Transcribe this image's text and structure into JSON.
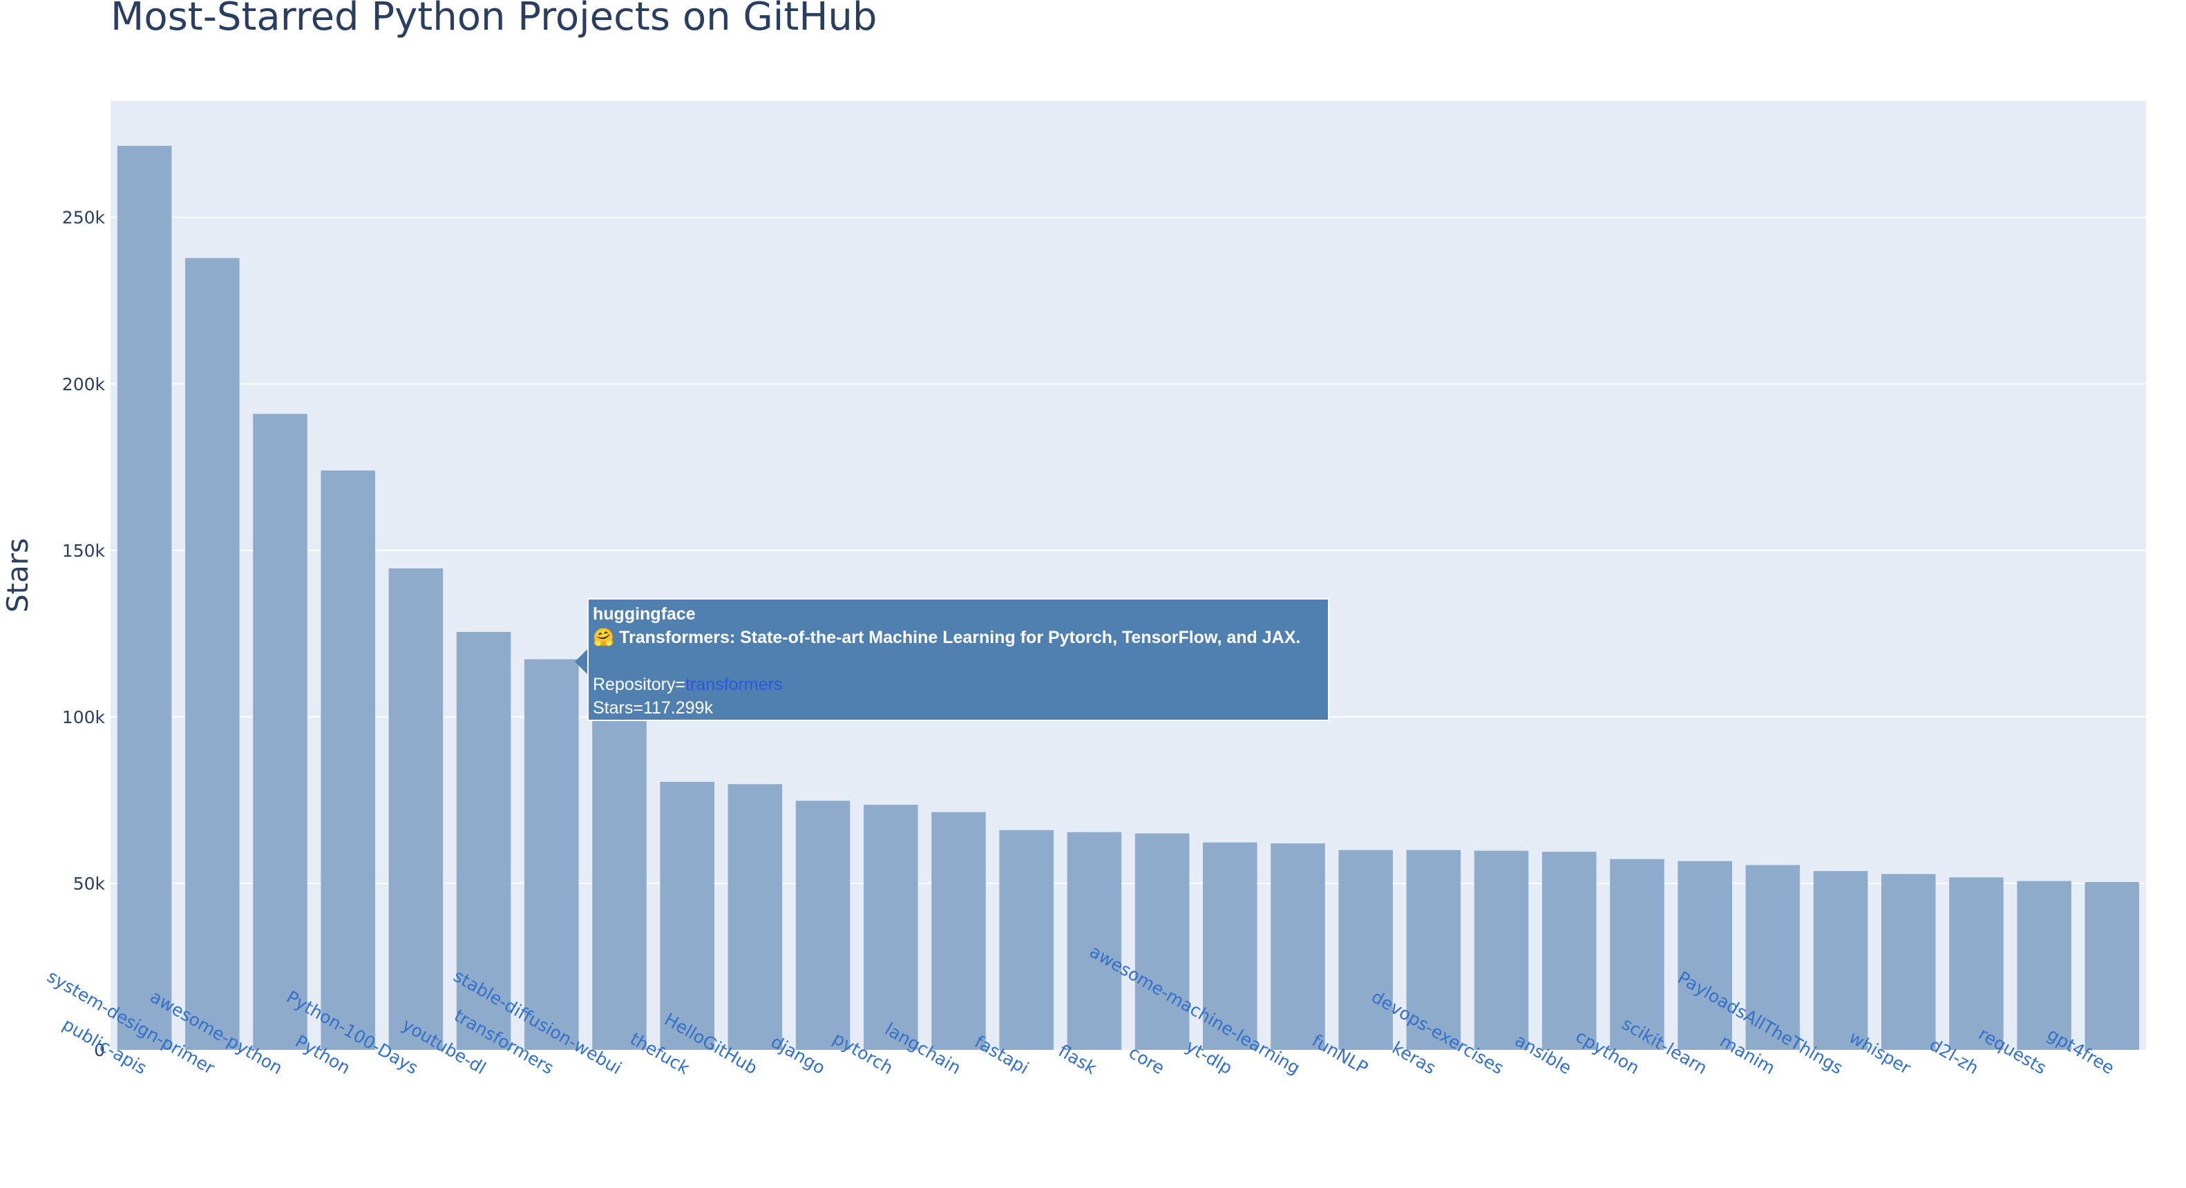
{
  "chart_data": {
    "type": "bar",
    "title": "Most-Starred Python Projects on GitHub",
    "xlabel": "",
    "ylabel": "Stars",
    "ylim": [
      0,
      285000
    ],
    "yticks": [
      0,
      50000,
      100000,
      150000,
      200000,
      250000
    ],
    "ytick_labels": [
      "0",
      "50k",
      "100k",
      "150k",
      "200k",
      "250k"
    ],
    "grid": true,
    "bar_color": "#8eabcc",
    "plot_bg_color": "#e5ecf6",
    "tick_label_color": "#3570c8",
    "categories": [
      "public-apis",
      "system-design-primer",
      "awesome-python",
      "Python",
      "Python-100-Days",
      "youtube-dl",
      "transformers",
      "stable-diffusion-webui",
      "thefuck",
      "HelloGitHub",
      "django",
      "pytorch",
      "langchain",
      "fastapi",
      "flask",
      "core",
      "yt-dlp",
      "awesome-machine-learning",
      "funNLP",
      "keras",
      "devops-exercises",
      "ansible",
      "cpython",
      "scikit-learn",
      "manim",
      "PayloadsAllTheThings",
      "whisper",
      "d2l-zh",
      "requests",
      "gpt4free"
    ],
    "values": [
      271500,
      237800,
      191000,
      174000,
      144600,
      125500,
      117299,
      104000,
      80500,
      79800,
      74800,
      73600,
      71400,
      66000,
      65400,
      65000,
      62300,
      62000,
      60000,
      60000,
      59800,
      59500,
      57300,
      56700,
      55500,
      53700,
      52800,
      51800,
      50700,
      50400
    ]
  },
  "tooltip": {
    "owner": "huggingface",
    "description": "🤗 Transformers: State-of-the-art Machine Learning for Pytorch, TensorFlow, and JAX.",
    "repository_label": "Repository=",
    "repository_value": "transformers",
    "stars_text": "Stars=117.299k",
    "hovered_category": "transformers",
    "background_color": "#5080b0"
  }
}
